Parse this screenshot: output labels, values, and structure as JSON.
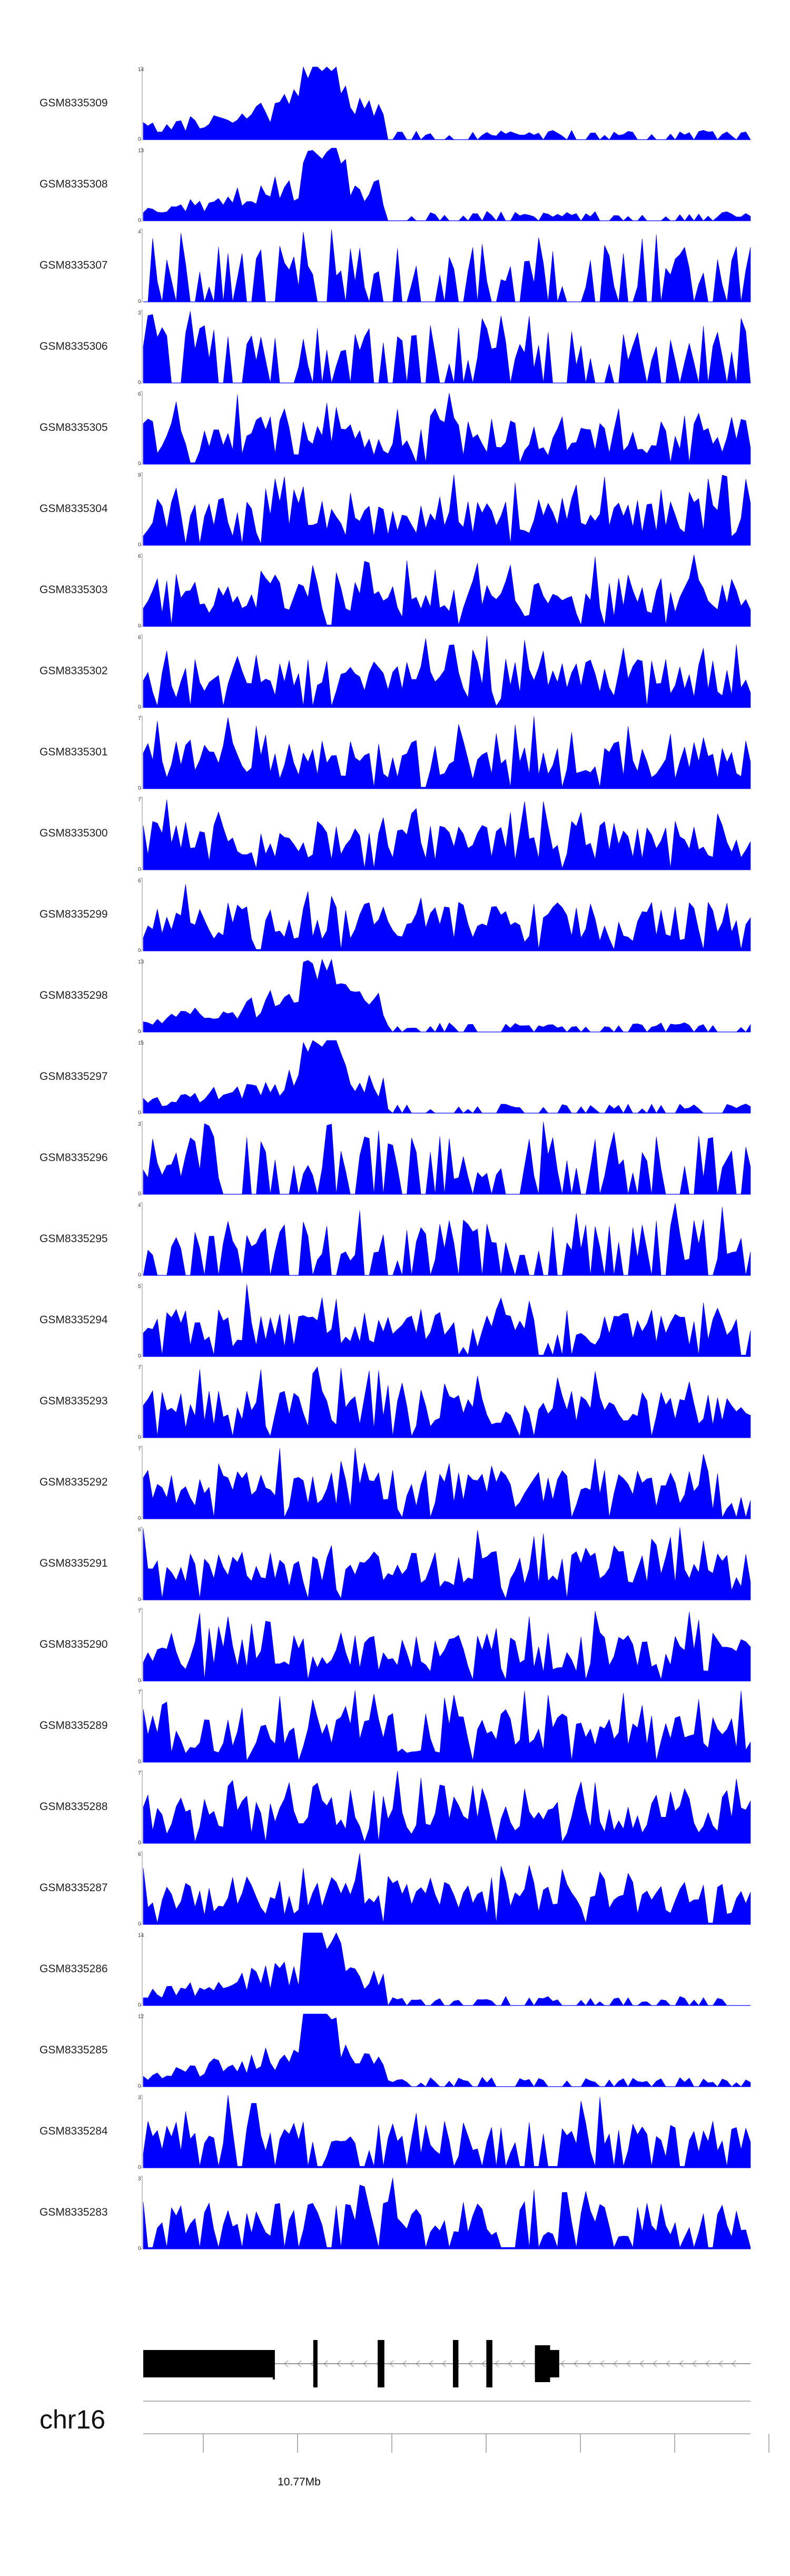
{
  "chart_data": {
    "type": "area",
    "title": "",
    "xlabel": "",
    "ylabel": "",
    "color": "#0000ff",
    "grid": false,
    "chromosome": "chr16",
    "position_label": "10.77Mb",
    "bins_per_track": 130,
    "tracks": [
      {
        "name": "GSM8335309",
        "ymax": "14",
        "ymin": "0",
        "seed": 11,
        "profile": "peak"
      },
      {
        "name": "GSM8335308",
        "ymax": "13",
        "ymin": "0",
        "seed": 12,
        "profile": "peak"
      },
      {
        "name": "GSM8335307",
        "ymax": "4",
        "ymin": "0",
        "seed": 13,
        "profile": "sparse"
      },
      {
        "name": "GSM8335306",
        "ymax": "3",
        "ymin": "0",
        "seed": 14,
        "profile": "sparse"
      },
      {
        "name": "GSM8335305",
        "ymax": "6",
        "ymin": "0",
        "seed": 15,
        "profile": "dense"
      },
      {
        "name": "GSM8335304",
        "ymax": "9",
        "ymin": "0",
        "seed": 16,
        "profile": "dense"
      },
      {
        "name": "GSM8335303",
        "ymax": "6",
        "ymin": "0",
        "seed": 17,
        "profile": "dense"
      },
      {
        "name": "GSM8335302",
        "ymax": "6",
        "ymin": "0",
        "seed": 18,
        "profile": "dense"
      },
      {
        "name": "GSM8335301",
        "ymax": "7",
        "ymin": "0",
        "seed": 19,
        "profile": "dense"
      },
      {
        "name": "GSM8335300",
        "ymax": "7",
        "ymin": "0",
        "seed": 20,
        "profile": "dense"
      },
      {
        "name": "GSM8335299",
        "ymax": "6",
        "ymin": "0",
        "seed": 21,
        "profile": "dense"
      },
      {
        "name": "GSM8335298",
        "ymax": "13",
        "ymin": "0",
        "seed": 22,
        "profile": "peak"
      },
      {
        "name": "GSM8335297",
        "ymax": "15",
        "ymin": "0",
        "seed": 23,
        "profile": "peak"
      },
      {
        "name": "GSM8335296",
        "ymax": "3",
        "ymin": "0",
        "seed": 24,
        "profile": "sparse"
      },
      {
        "name": "GSM8335295",
        "ymax": "4",
        "ymin": "0",
        "seed": 25,
        "profile": "sparse"
      },
      {
        "name": "GSM8335294",
        "ymax": "5",
        "ymin": "0",
        "seed": 26,
        "profile": "dense"
      },
      {
        "name": "GSM8335293",
        "ymax": "7",
        "ymin": "0",
        "seed": 27,
        "profile": "dense"
      },
      {
        "name": "GSM8335292",
        "ymax": "7",
        "ymin": "0",
        "seed": 28,
        "profile": "dense"
      },
      {
        "name": "GSM8335291",
        "ymax": "6",
        "ymin": "0",
        "seed": 29,
        "profile": "dense"
      },
      {
        "name": "GSM8335290",
        "ymax": "7",
        "ymin": "0",
        "seed": 30,
        "profile": "dense"
      },
      {
        "name": "GSM8335289",
        "ymax": "7",
        "ymin": "0",
        "seed": 31,
        "profile": "dense"
      },
      {
        "name": "GSM8335288",
        "ymax": "7",
        "ymin": "0",
        "seed": 32,
        "profile": "dense"
      },
      {
        "name": "GSM8335287",
        "ymax": "6",
        "ymin": "0",
        "seed": 33,
        "profile": "dense"
      },
      {
        "name": "GSM8335286",
        "ymax": "14",
        "ymin": "0",
        "seed": 34,
        "profile": "peak"
      },
      {
        "name": "GSM8335285",
        "ymax": "12",
        "ymin": "0",
        "seed": 35,
        "profile": "peak"
      },
      {
        "name": "GSM8335284",
        "ymax": "3",
        "ymin": "0",
        "seed": 36,
        "profile": "medium"
      },
      {
        "name": "GSM8335283",
        "ymax": "3",
        "ymin": "0",
        "seed": 37,
        "profile": "medium"
      }
    ],
    "gene_model": {
      "strand": "-",
      "exons_fraction": [
        [
          0.0,
          0.215
        ],
        [
          0.28,
          0.287
        ],
        [
          0.386,
          0.397
        ],
        [
          0.51,
          0.519
        ],
        [
          0.565,
          0.575
        ],
        [
          0.645,
          0.67
        ],
        [
          0.645,
          0.685
        ]
      ]
    },
    "axis": {
      "tick_count": 7,
      "labeled_tick_index": 1
    }
  }
}
